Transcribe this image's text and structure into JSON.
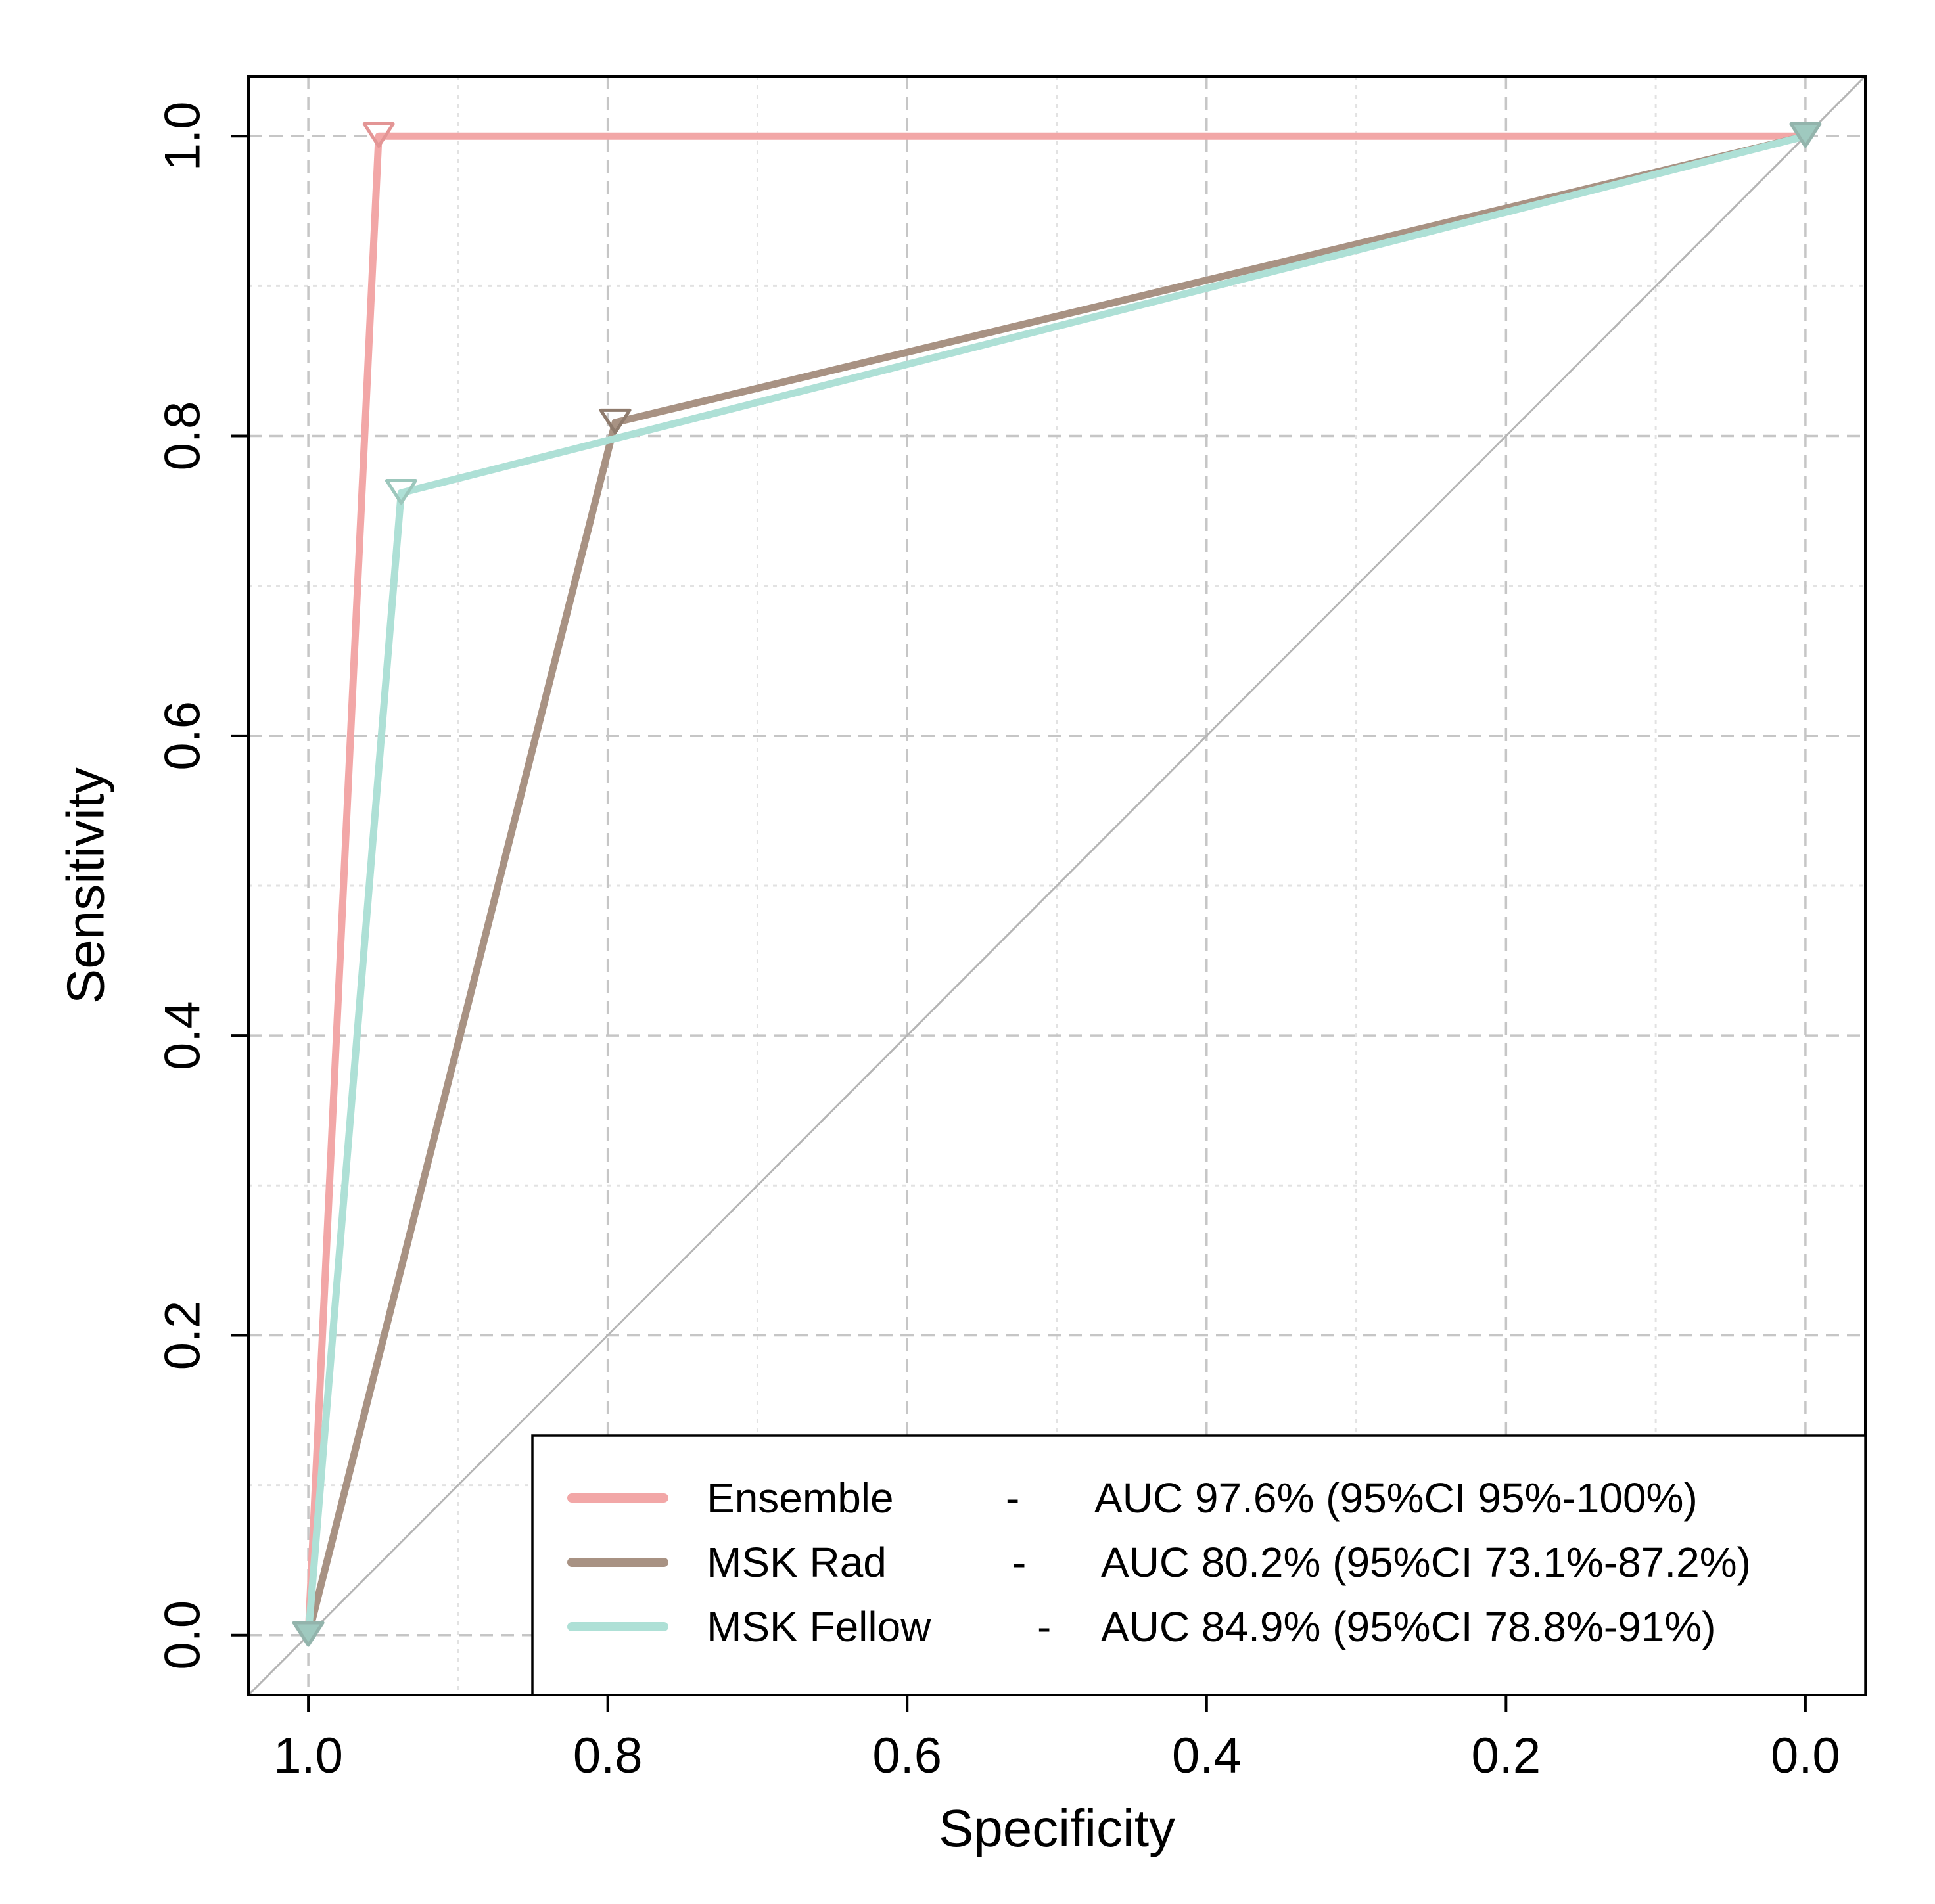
{
  "chart_data": {
    "type": "line",
    "title": "",
    "xlabel": "Specificity",
    "ylabel": "Sensitivity",
    "x_reversed": true,
    "xlim": [
      1.04,
      -0.04
    ],
    "ylim": [
      -0.04,
      1.04
    ],
    "x_ticks": [
      {
        "value": 1.0,
        "label": "1.0"
      },
      {
        "value": 0.8,
        "label": "0.8"
      },
      {
        "value": 0.6,
        "label": "0.6"
      },
      {
        "value": 0.4,
        "label": "0.4"
      },
      {
        "value": 0.2,
        "label": "0.2"
      },
      {
        "value": 0.0,
        "label": "0.0"
      }
    ],
    "y_ticks": [
      {
        "value": 0.0,
        "label": "0.0"
      },
      {
        "value": 0.2,
        "label": "0.2"
      },
      {
        "value": 0.4,
        "label": "0.4"
      },
      {
        "value": 0.6,
        "label": "0.6"
      },
      {
        "value": 0.8,
        "label": "0.8"
      },
      {
        "value": 1.0,
        "label": "1.0"
      }
    ],
    "minor_grid": [
      0.1,
      0.3,
      0.5,
      0.7,
      0.9
    ],
    "grid": true,
    "diagonal_reference": true,
    "legend_position": "bottom-right",
    "series": [
      {
        "name": "Ensemble",
        "separator": "-",
        "auc_text": "AUC 97.6% (95%CI 95%-100%)",
        "color": "#f2a7a7",
        "marker_color": "#e39595",
        "x": [
          1.0,
          0.953,
          0.0
        ],
        "y": [
          0.0,
          1.0,
          1.0
        ],
        "marker": {
          "x": 0.953,
          "y": 1.0
        }
      },
      {
        "name": "MSK Rad",
        "separator": "-",
        "auc_text": "AUC 80.2% (95%CI 73.1%-87.2%)",
        "color": "#a89283",
        "marker_color": "#8f7b6d",
        "x": [
          1.0,
          0.795,
          0.0
        ],
        "y": [
          0.0,
          0.809,
          1.0
        ],
        "marker": {
          "x": 0.795,
          "y": 0.809
        }
      },
      {
        "name": "MSK Fellow",
        "separator": "-",
        "auc_text": "AUC 84.9% (95%CI 78.8%-91%)",
        "color": "#aee0d6",
        "marker_color": "#9cc7bc",
        "x": [
          1.0,
          0.938,
          0.0
        ],
        "y": [
          0.0,
          0.762,
          1.0
        ],
        "marker": {
          "x": 0.938,
          "y": 0.762
        }
      }
    ],
    "endpoint_markers": [
      {
        "x": 1.0,
        "y": 0.0
      },
      {
        "x": 0.0,
        "y": 1.0
      }
    ]
  }
}
